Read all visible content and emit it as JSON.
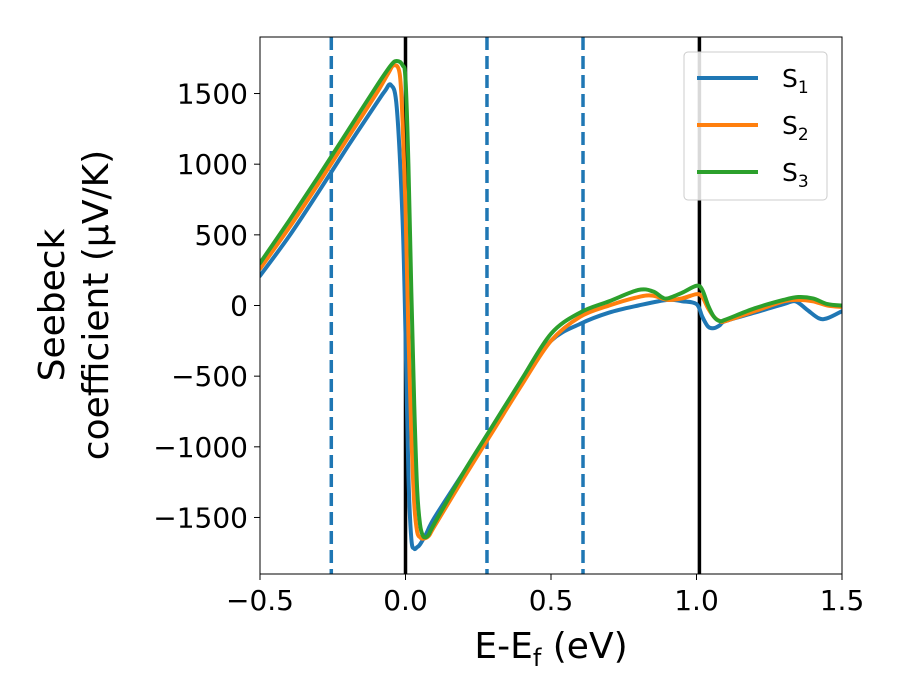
{
  "chart_data": {
    "type": "line",
    "xlabel": "E-E_f (eV)",
    "xlabel_parts": {
      "main": "E-E",
      "sub": "f",
      "unit": " (eV)"
    },
    "ylabel_lines": [
      "Seebeck",
      "coefficient  (μV/K)"
    ],
    "xlim": [
      -0.5,
      1.5
    ],
    "ylim": [
      -1900,
      1900
    ],
    "x_ticks": [
      -0.5,
      0.0,
      0.5,
      1.0,
      1.5
    ],
    "x_tick_labels": [
      "−0.5",
      "0.0",
      "0.5",
      "1.0",
      "1.5"
    ],
    "y_ticks": [
      -1500,
      -1000,
      -500,
      0,
      500,
      1000,
      1500
    ],
    "y_tick_labels": [
      "−1500",
      "−1000",
      "−500",
      "0",
      "500",
      "1000",
      "1500"
    ],
    "grid": false,
    "legend_position": "top-right",
    "vertical_lines": [
      {
        "x": -0.255,
        "style": "dashed",
        "color": "#1f77b4"
      },
      {
        "x": 0.0,
        "style": "solid",
        "color": "#000000"
      },
      {
        "x": 0.28,
        "style": "dashed",
        "color": "#1f77b4"
      },
      {
        "x": 0.61,
        "style": "dashed",
        "color": "#1f77b4"
      },
      {
        "x": 1.01,
        "style": "solid",
        "color": "#000000"
      }
    ],
    "series": [
      {
        "name": "S_1",
        "label_main": "S",
        "label_sub": "1",
        "color": "#1f77b4",
        "x": [
          -0.5,
          -0.4,
          -0.3,
          -0.2,
          -0.1,
          -0.07,
          -0.05,
          -0.03,
          -0.01,
          0.0,
          0.01,
          0.02,
          0.03,
          0.04,
          0.05,
          0.07,
          0.1,
          0.2,
          0.3,
          0.4,
          0.5,
          0.6,
          0.7,
          0.8,
          0.9,
          0.95,
          1.0,
          1.02,
          1.04,
          1.06,
          1.08,
          1.1,
          1.2,
          1.3,
          1.34,
          1.38,
          1.42,
          1.45,
          1.5
        ],
        "y": [
          210,
          490,
          800,
          1120,
          1430,
          1520,
          1560,
          1400,
          600,
          -200,
          -1200,
          -1650,
          -1720,
          -1710,
          -1690,
          -1620,
          -1500,
          -1180,
          -860,
          -530,
          -250,
          -130,
          -50,
          0,
          40,
          30,
          10,
          -80,
          -150,
          -160,
          -140,
          -110,
          -50,
          10,
          30,
          -30,
          -90,
          -90,
          -40
        ]
      },
      {
        "name": "S_2",
        "label_main": "S",
        "label_sub": "2",
        "color": "#ff7f0e",
        "x": [
          -0.5,
          -0.4,
          -0.3,
          -0.2,
          -0.1,
          -0.06,
          -0.04,
          -0.02,
          -0.01,
          0.0,
          0.01,
          0.02,
          0.03,
          0.04,
          0.05,
          0.06,
          0.08,
          0.1,
          0.2,
          0.3,
          0.4,
          0.5,
          0.6,
          0.7,
          0.8,
          0.85,
          0.9,
          0.95,
          1.0,
          1.02,
          1.04,
          1.06,
          1.08,
          1.1,
          1.2,
          1.3,
          1.35,
          1.4,
          1.45,
          1.5
        ],
        "y": [
          260,
          550,
          860,
          1180,
          1500,
          1640,
          1700,
          1640,
          1300,
          700,
          -200,
          -900,
          -1400,
          -1600,
          -1640,
          -1650,
          -1630,
          -1560,
          -1220,
          -890,
          -560,
          -250,
          -80,
          0,
          60,
          70,
          40,
          50,
          80,
          60,
          -20,
          -80,
          -110,
          -110,
          -40,
          30,
          40,
          30,
          0,
          -10
        ]
      },
      {
        "name": "S_3",
        "label_main": "S",
        "label_sub": "3",
        "color": "#2ca02c",
        "x": [
          -0.5,
          -0.4,
          -0.3,
          -0.2,
          -0.1,
          -0.05,
          -0.03,
          -0.01,
          0.0,
          0.01,
          0.02,
          0.03,
          0.04,
          0.05,
          0.06,
          0.07,
          0.08,
          0.1,
          0.2,
          0.3,
          0.4,
          0.5,
          0.6,
          0.7,
          0.8,
          0.85,
          0.88,
          0.9,
          0.95,
          1.0,
          1.02,
          1.04,
          1.06,
          1.08,
          1.1,
          1.2,
          1.3,
          1.35,
          1.4,
          1.45,
          1.5
        ],
        "y": [
          300,
          600,
          910,
          1230,
          1550,
          1700,
          1730,
          1700,
          1600,
          1000,
          100,
          -700,
          -1300,
          -1550,
          -1630,
          -1640,
          -1620,
          -1540,
          -1180,
          -850,
          -520,
          -200,
          -50,
          30,
          110,
          100,
          60,
          50,
          90,
          140,
          110,
          0,
          -80,
          -110,
          -100,
          -20,
          40,
          60,
          50,
          10,
          0
        ]
      }
    ]
  }
}
